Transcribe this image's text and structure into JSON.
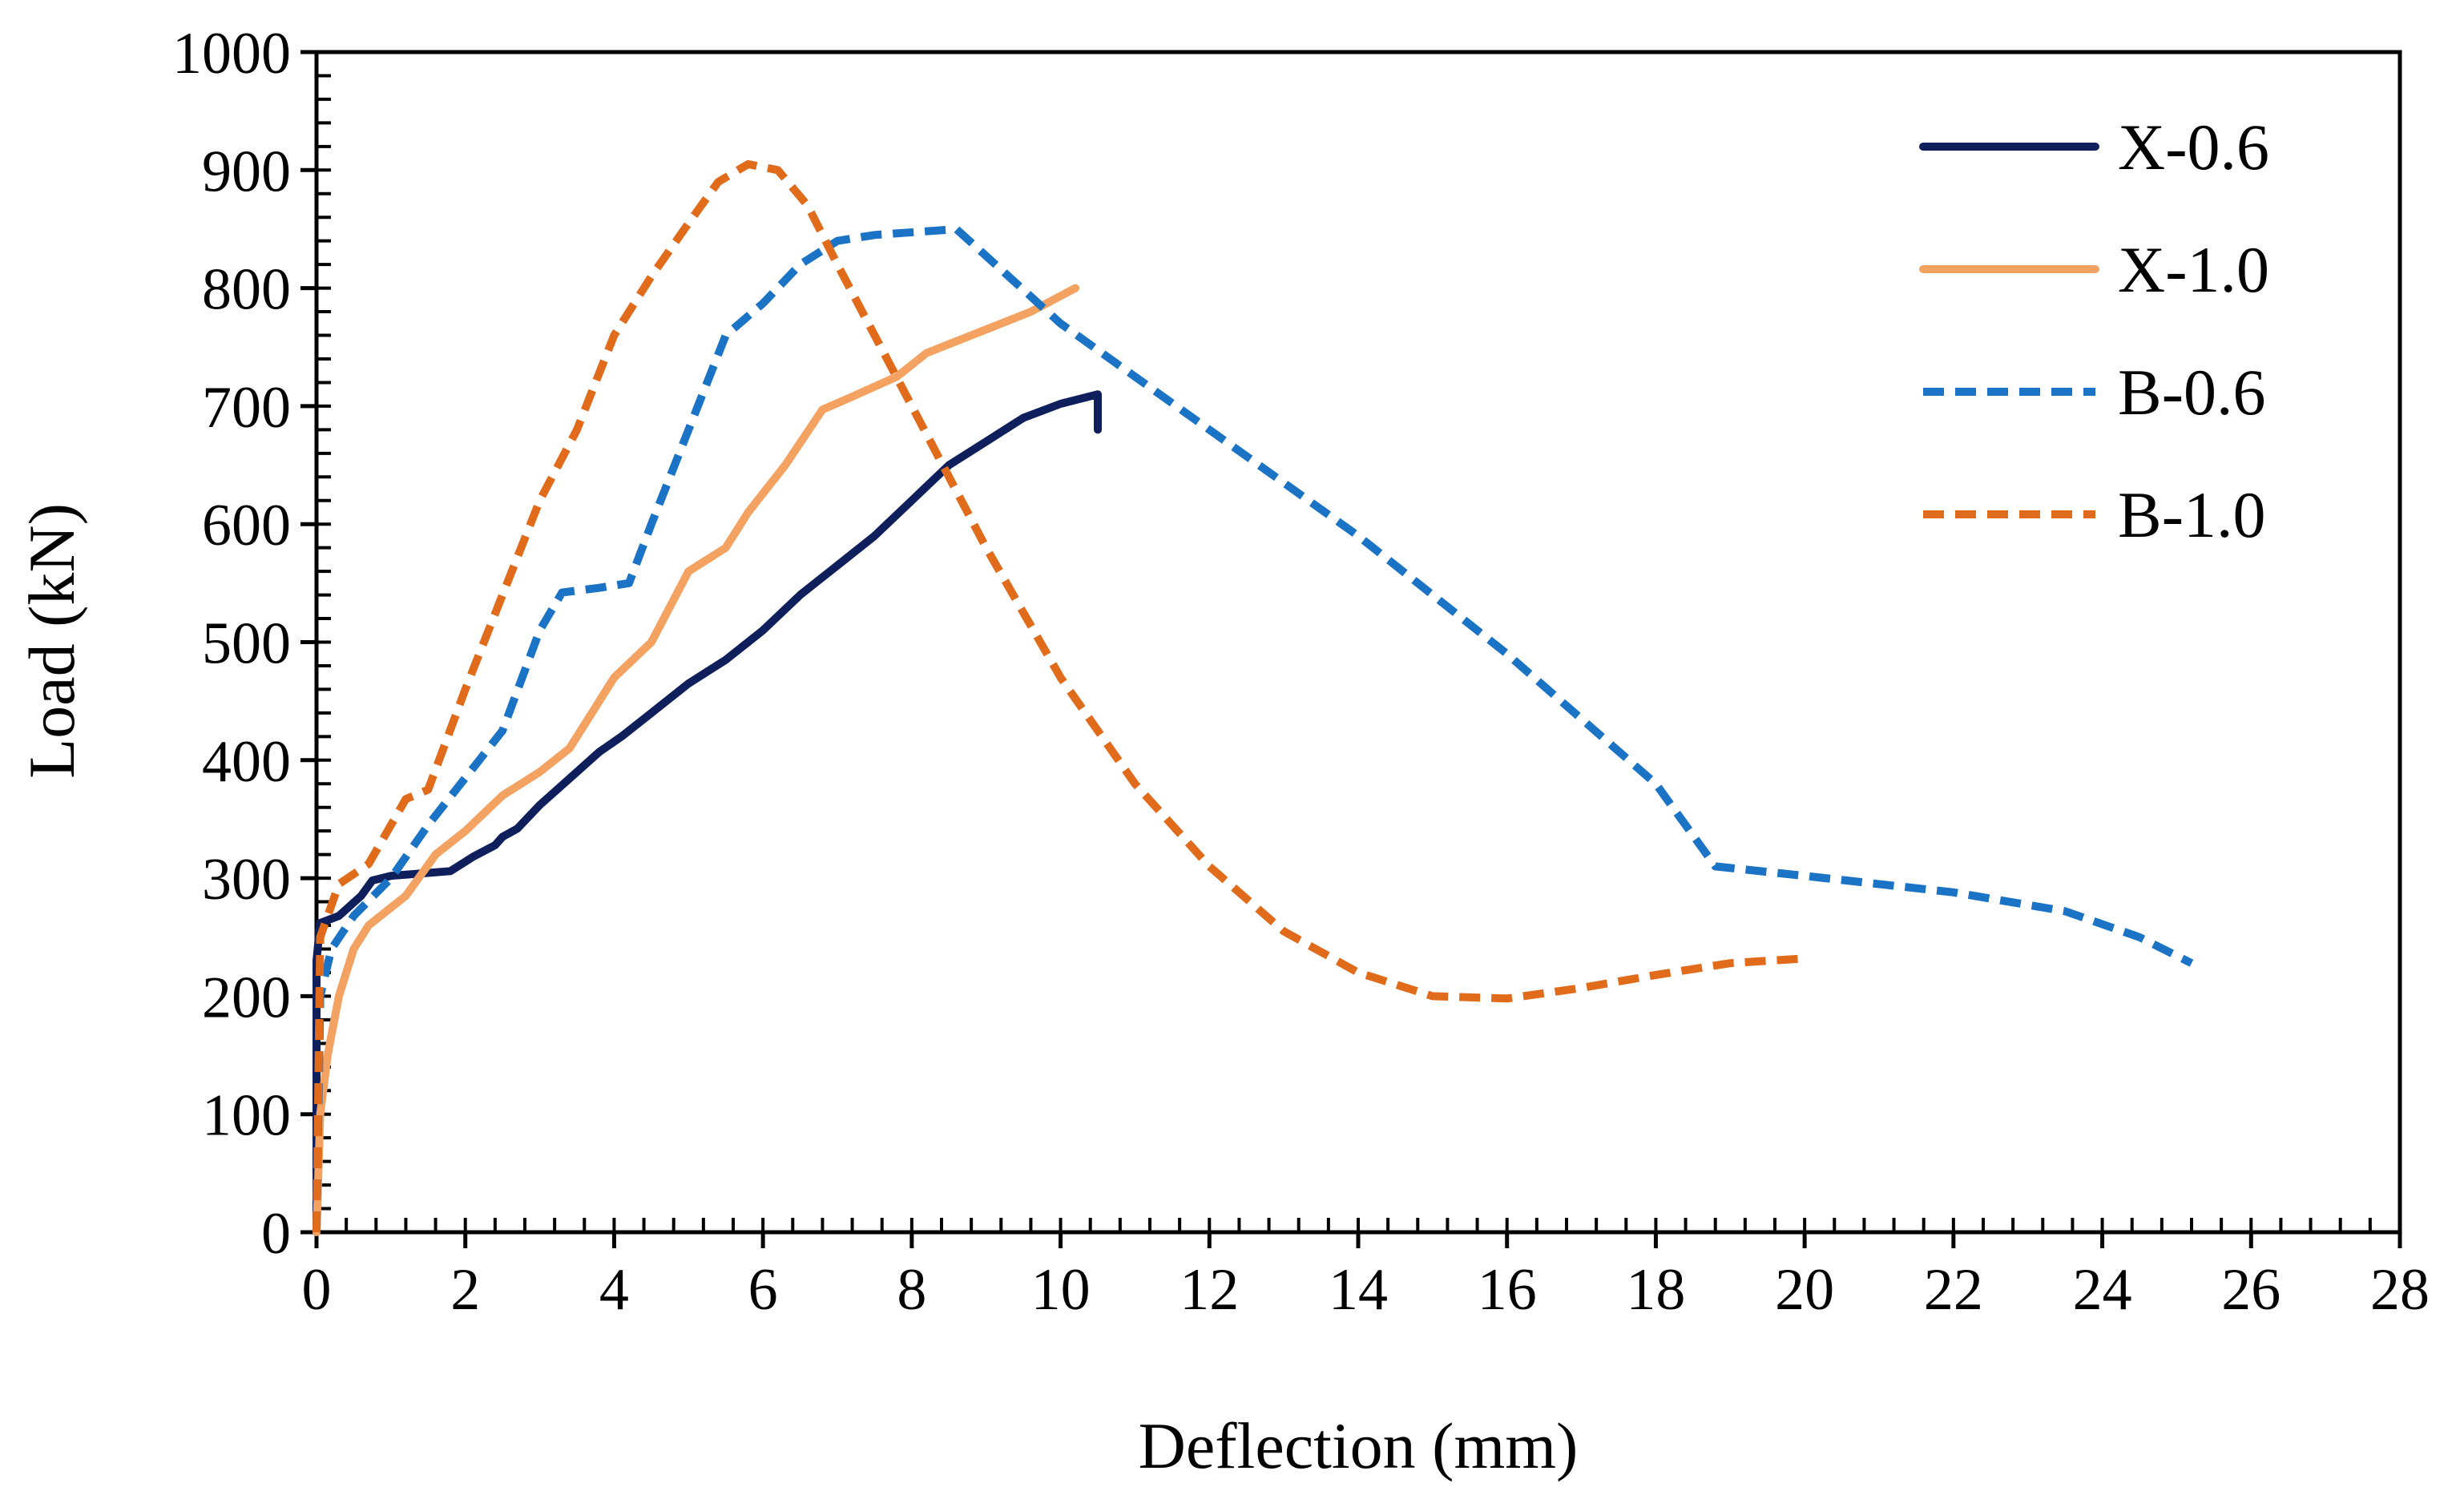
{
  "chart_data": {
    "type": "line",
    "title": "",
    "xlabel": "Deflection (mm)",
    "ylabel": "Load (kN)",
    "xlim": [
      0,
      28
    ],
    "ylim": [
      0,
      1000
    ],
    "xticks": [
      0,
      2,
      4,
      6,
      8,
      10,
      12,
      14,
      16,
      18,
      20,
      22,
      24,
      26,
      28
    ],
    "yticks": [
      0,
      100,
      200,
      300,
      400,
      500,
      600,
      700,
      800,
      900,
      1000
    ],
    "x_minor_step": 0.4,
    "y_minor_step": 20,
    "grid": false,
    "legend": "top-right",
    "series": [
      {
        "name": "X-0.6",
        "color": "#0f1f5c",
        "dash": "solid",
        "points": [
          [
            0,
            0
          ],
          [
            0,
            230
          ],
          [
            0.05,
            262
          ],
          [
            0.3,
            268
          ],
          [
            0.6,
            285
          ],
          [
            0.75,
            298
          ],
          [
            1.0,
            302
          ],
          [
            1.8,
            306
          ],
          [
            2.1,
            318
          ],
          [
            2.4,
            328
          ],
          [
            2.5,
            335
          ],
          [
            2.7,
            342
          ],
          [
            3.0,
            362
          ],
          [
            3.5,
            390
          ],
          [
            3.8,
            407
          ],
          [
            4.1,
            420
          ],
          [
            4.5,
            440
          ],
          [
            5.0,
            465
          ],
          [
            5.5,
            485
          ],
          [
            6.0,
            510
          ],
          [
            6.5,
            540
          ],
          [
            7.0,
            565
          ],
          [
            7.5,
            590
          ],
          [
            8.0,
            620
          ],
          [
            8.5,
            650
          ],
          [
            9.0,
            670
          ],
          [
            9.5,
            690
          ],
          [
            10.0,
            702
          ],
          [
            10.5,
            710
          ],
          [
            10.5,
            680
          ]
        ]
      },
      {
        "name": "X-1.0",
        "color": "#f4a261",
        "dash": "solid",
        "points": [
          [
            0,
            0
          ],
          [
            0.05,
            100
          ],
          [
            0.15,
            150
          ],
          [
            0.3,
            200
          ],
          [
            0.5,
            240
          ],
          [
            0.7,
            260
          ],
          [
            1.2,
            285
          ],
          [
            1.6,
            320
          ],
          [
            2.0,
            340
          ],
          [
            2.5,
            370
          ],
          [
            3.0,
            390
          ],
          [
            3.4,
            410
          ],
          [
            3.7,
            440
          ],
          [
            4.0,
            470
          ],
          [
            4.5,
            500
          ],
          [
            5.0,
            560
          ],
          [
            5.5,
            580
          ],
          [
            5.8,
            610
          ],
          [
            6.3,
            650
          ],
          [
            6.8,
            697
          ],
          [
            7.2,
            708
          ],
          [
            7.8,
            725
          ],
          [
            8.2,
            745
          ],
          [
            9.0,
            765
          ],
          [
            9.6,
            780
          ],
          [
            10.2,
            800
          ]
        ]
      },
      {
        "name": "B-0.6",
        "color": "#1a73c4",
        "dash": "dashed",
        "points": [
          [
            0,
            0
          ],
          [
            0.05,
            200
          ],
          [
            0.2,
            240
          ],
          [
            0.5,
            268
          ],
          [
            1.0,
            300
          ],
          [
            1.5,
            345
          ],
          [
            2.0,
            385
          ],
          [
            2.5,
            425
          ],
          [
            3.0,
            510
          ],
          [
            3.3,
            542
          ],
          [
            3.8,
            546
          ],
          [
            4.2,
            550
          ],
          [
            4.5,
            600
          ],
          [
            5.0,
            680
          ],
          [
            5.5,
            760
          ],
          [
            6.0,
            787
          ],
          [
            6.5,
            820
          ],
          [
            7.0,
            840
          ],
          [
            7.5,
            845
          ],
          [
            8.6,
            850
          ],
          [
            10.0,
            770
          ],
          [
            12.0,
            680
          ],
          [
            14.0,
            590
          ],
          [
            16.0,
            490
          ],
          [
            18.0,
            380
          ],
          [
            18.8,
            310
          ],
          [
            20.0,
            302
          ],
          [
            22.0,
            288
          ],
          [
            23.5,
            272
          ],
          [
            24.5,
            250
          ],
          [
            25.2,
            228
          ]
        ]
      },
      {
        "name": "B-1.0",
        "color": "#e06b1b",
        "dash": "dashed",
        "points": [
          [
            0,
            0
          ],
          [
            0.05,
            250
          ],
          [
            0.3,
            295
          ],
          [
            0.7,
            312
          ],
          [
            1.0,
            345
          ],
          [
            1.2,
            367
          ],
          [
            1.5,
            375
          ],
          [
            2.0,
            460
          ],
          [
            2.5,
            540
          ],
          [
            3.0,
            620
          ],
          [
            3.5,
            680
          ],
          [
            4.0,
            760
          ],
          [
            4.5,
            810
          ],
          [
            5.0,
            855
          ],
          [
            5.4,
            890
          ],
          [
            5.8,
            905
          ],
          [
            6.2,
            900
          ],
          [
            6.6,
            870
          ],
          [
            7.0,
            820
          ],
          [
            8.0,
            700
          ],
          [
            9.0,
            580
          ],
          [
            10.0,
            470
          ],
          [
            11.0,
            380
          ],
          [
            12.0,
            310
          ],
          [
            13.0,
            255
          ],
          [
            14.0,
            220
          ],
          [
            15.0,
            200
          ],
          [
            16.0,
            198
          ],
          [
            17.0,
            207
          ],
          [
            18.0,
            218
          ],
          [
            19.0,
            228
          ],
          [
            20.0,
            232
          ]
        ]
      }
    ]
  }
}
